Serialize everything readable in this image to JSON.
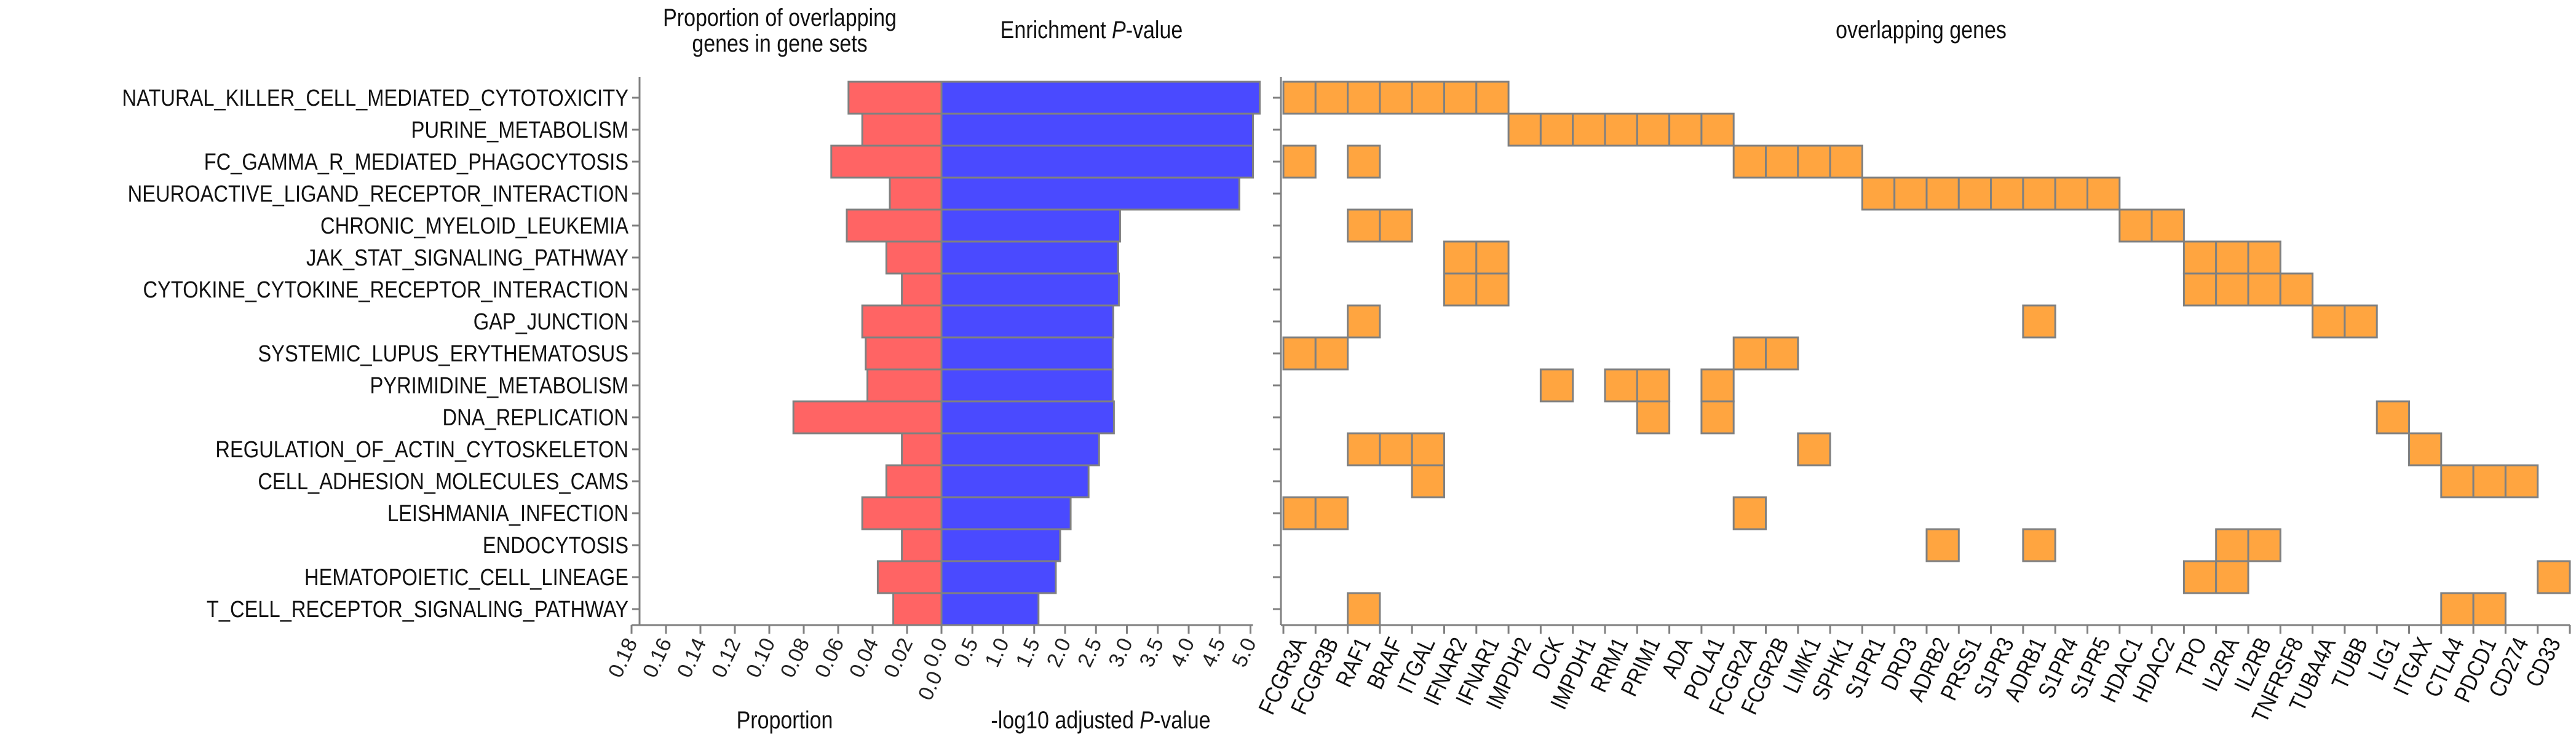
{
  "chart_data": {
    "type": "bar",
    "titles": {
      "proportion_line1": "Proportion of overlapping",
      "proportion_line2": "genes in gene sets",
      "enrichment_pre": "Enrichment ",
      "enrichment_italic": "P",
      "enrichment_post": "-value",
      "genes": "overlapping genes"
    },
    "axis_labels": {
      "proportion": "Proportion",
      "pvalue_pre": "-log10 adjusted ",
      "pvalue_italic": "P",
      "pvalue_post": "-value"
    },
    "proportion_ticks": [
      "0.18",
      "0.16",
      "0.14",
      "0.12",
      "0.10",
      "0.08",
      "0.06",
      "0.04",
      "0.02",
      "0.0"
    ],
    "pvalue_ticks": [
      "0.0",
      "0.5",
      "1.0",
      "1.5",
      "2.0",
      "2.5",
      "3.0",
      "3.5",
      "4.0",
      "4.5",
      "5.0"
    ],
    "proportion_xlim": [
      0.18,
      0
    ],
    "pvalue_xlim": [
      0,
      5.0
    ],
    "colors": {
      "proportion": "#ff6464",
      "pvalue": "#4a4aff",
      "gene": "#ffa540",
      "edge": "#808080"
    },
    "pathways": [
      "NATURAL_KILLER_CELL_MEDIATED_CYTOTOXICITY",
      "PURINE_METABOLISM",
      "FC_GAMMA_R_MEDIATED_PHAGOCYTOSIS",
      "NEUROACTIVE_LIGAND_RECEPTOR_INTERACTION",
      "CHRONIC_MYELOID_LEUKEMIA",
      "JAK_STAT_SIGNALING_PATHWAY",
      "CYTOKINE_CYTOKINE_RECEPTOR_INTERACTION",
      "GAP_JUNCTION",
      "SYSTEMIC_LUPUS_ERYTHEMATOSUS",
      "PYRIMIDINE_METABOLISM",
      "DNA_REPLICATION",
      "REGULATION_OF_ACTIN_CYTOSKELETON",
      "CELL_ADHESION_MOLECULES_CAMS",
      "LEISHMANIA_INFECTION",
      "ENDOCYTOSIS",
      "HEMATOPOIETIC_CELL_LINEAGE",
      "T_CELL_RECEPTOR_SIGNALING_PATHWAY"
    ],
    "proportion": [
      0.054,
      0.046,
      0.064,
      0.03,
      0.055,
      0.032,
      0.023,
      0.046,
      0.044,
      0.043,
      0.086,
      0.023,
      0.032,
      0.046,
      0.023,
      0.037,
      0.028
    ],
    "neg_log10_adj_p": [
      5.15,
      5.04,
      5.04,
      4.82,
      2.89,
      2.86,
      2.87,
      2.78,
      2.77,
      2.77,
      2.79,
      2.55,
      2.38,
      2.09,
      1.92,
      1.85,
      1.57
    ],
    "genes": [
      "FCGR3A",
      "FCGR3B",
      "RAF1",
      "BRAF",
      "ITGAL",
      "IFNAR2",
      "IFNAR1",
      "IMPDH2",
      "DCK",
      "IMPDH1",
      "RRM1",
      "PRIM1",
      "ADA",
      "POLA1",
      "FCGR2A",
      "FCGR2B",
      "LIMK1",
      "SPHK1",
      "S1PR1",
      "DRD3",
      "ADRB2",
      "PRSS1",
      "S1PR3",
      "ADRB1",
      "S1PR4",
      "S1PR5",
      "HDAC1",
      "HDAC2",
      "TPO",
      "IL2RA",
      "IL2RB",
      "TNFRSF8",
      "TUBA4A",
      "TUBB",
      "LIG1",
      "ITGAX",
      "CTLA4",
      "PDCD1",
      "CD274",
      "CD33"
    ],
    "membership": [
      [
        0,
        1,
        2,
        3,
        4,
        5,
        6
      ],
      [
        7,
        8,
        9,
        10,
        11,
        12,
        13
      ],
      [
        0,
        2,
        14,
        15,
        16,
        17
      ],
      [
        18,
        19,
        20,
        21,
        22,
        23,
        24,
        25
      ],
      [
        2,
        3,
        26,
        27
      ],
      [
        5,
        6,
        28,
        29,
        30
      ],
      [
        5,
        6,
        28,
        29,
        30,
        31
      ],
      [
        2,
        23,
        32,
        33
      ],
      [
        0,
        1,
        14,
        15
      ],
      [
        8,
        10,
        11,
        13
      ],
      [
        11,
        13,
        34
      ],
      [
        2,
        3,
        4,
        16,
        35
      ],
      [
        4,
        36,
        37,
        38
      ],
      [
        0,
        1,
        14
      ],
      [
        20,
        23,
        29,
        30
      ],
      [
        28,
        29,
        39
      ],
      [
        2,
        36,
        37
      ]
    ]
  }
}
